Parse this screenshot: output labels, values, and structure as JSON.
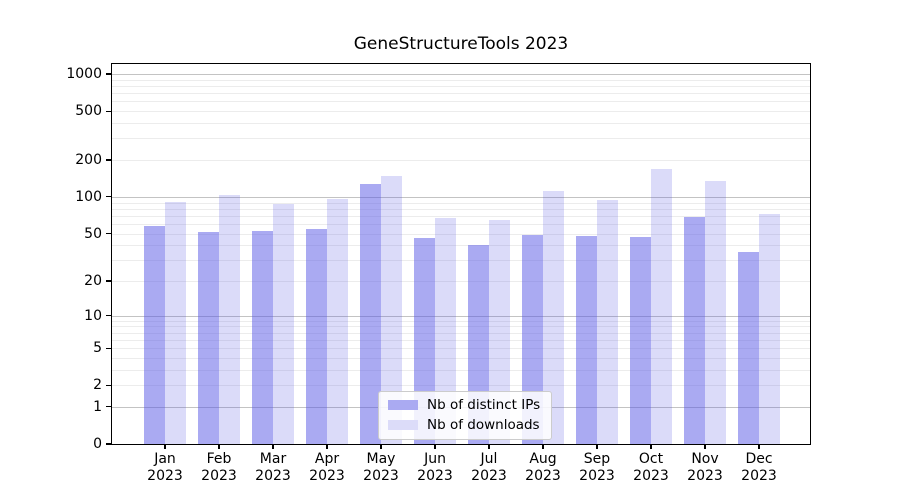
{
  "title": "GeneStructureTools 2023",
  "chart_data": {
    "type": "bar",
    "title": "GeneStructureTools 2023",
    "x_months": [
      "Jan",
      "Feb",
      "Mar",
      "Apr",
      "May",
      "Jun",
      "Jul",
      "Aug",
      "Sep",
      "Oct",
      "Nov",
      "Dec"
    ],
    "x_year": "2023",
    "series": [
      {
        "name": "Nb of distinct IPs",
        "fill": "rgba(85,85,229,0.5)",
        "swatch": "#aaaaf2",
        "values": [
          58,
          51,
          52,
          54,
          128,
          46,
          40,
          49,
          48,
          47,
          68,
          35
        ]
      },
      {
        "name": "Nb of downloads",
        "fill": "rgba(85,85,229,0.21)",
        "swatch": "#dcdcf9",
        "values": [
          91,
          104,
          87,
          96,
          148,
          67,
          65,
          112,
          94,
          170,
          135,
          73
        ]
      }
    ],
    "y_ticks": [
      1000,
      500,
      200,
      100,
      50,
      20,
      10,
      5,
      2,
      1,
      0
    ],
    "y_major_gridlines": [
      1,
      10,
      100,
      1000
    ],
    "scale": "log1p",
    "ylim": [
      0,
      1200
    ],
    "grid": "major+minor",
    "legend_position": "lower center",
    "colors": {
      "major_grid": "#c3c3c3",
      "minor_grid": "#ececec",
      "axis": "#000000"
    }
  }
}
